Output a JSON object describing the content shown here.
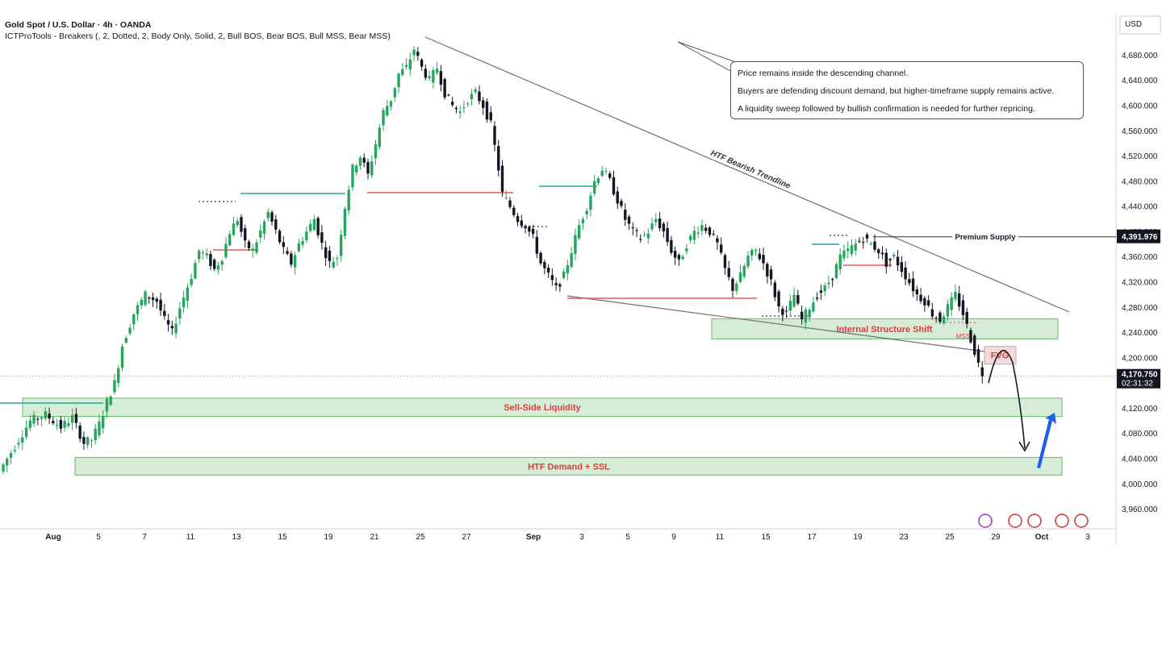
{
  "header": {
    "title": "Gold Spot / U.S. Dollar · 4h · OANDA",
    "indicator": "ICTProTools - Breakers (, 2, Dotted, 2, Body Only, Solid, 2, Bull BOS, Bear BOS, Bull MSS, Bear MSS)"
  },
  "currency": "USD",
  "note": {
    "lines": [
      "Price remains inside the descending channel.",
      "Buyers are defending discount demand, but higher-timeframe supply remains active.",
      "A liquidity sweep followed by bullish confirmation is needed for further repricing."
    ]
  },
  "chart_data": {
    "type": "candlestick",
    "symbol": "XAUUSD",
    "timeframe": "4h",
    "ylim": [
      3930,
      4710
    ],
    "y_ticks": [
      3960,
      4000,
      4040,
      4080,
      4120,
      4160,
      4200,
      4240,
      4280,
      4320,
      4360,
      4400,
      4440,
      4480,
      4520,
      4560,
      4600,
      4640,
      4680
    ],
    "y_tick_labels": [
      "3,960.000",
      "4,000.000",
      "4,040.000",
      "4,080.000",
      "4,120.000",
      "4,160.000",
      "4,200.000",
      "4,240.000",
      "4,280.000",
      "4,320.000",
      "4,360.000",
      "4,400.000",
      "4,440.000",
      "4,480.000",
      "4,520.000",
      "4,560.000",
      "4,600.000",
      "4,640.000",
      "4,680.000"
    ],
    "x_ticks": [
      "Aug",
      "5",
      "7",
      "11",
      "13",
      "15",
      "19",
      "21",
      "25",
      "27",
      "Sep",
      "3",
      "5",
      "9",
      "11",
      "15",
      "17",
      "19",
      "23",
      "25",
      "29",
      "Oct",
      "3"
    ],
    "price_path": [
      [
        0,
        4020
      ],
      [
        4,
        4060
      ],
      [
        8,
        4100
      ],
      [
        12,
        4110
      ],
      [
        16,
        4090
      ],
      [
        19,
        4105
      ],
      [
        22,
        4065
      ],
      [
        24,
        4070
      ],
      [
        26,
        4095
      ],
      [
        28,
        4130
      ],
      [
        30,
        4160
      ],
      [
        32,
        4220
      ],
      [
        35,
        4270
      ],
      [
        38,
        4300
      ],
      [
        41,
        4290
      ],
      [
        43,
        4260
      ],
      [
        45,
        4240
      ],
      [
        47,
        4280
      ],
      [
        50,
        4330
      ],
      [
        52,
        4370
      ],
      [
        54,
        4360
      ],
      [
        56,
        4340
      ],
      [
        58,
        4360
      ],
      [
        60,
        4400
      ],
      [
        62,
        4420
      ],
      [
        64,
        4380
      ],
      [
        66,
        4370
      ],
      [
        68,
        4400
      ],
      [
        70,
        4430
      ],
      [
        72,
        4400
      ],
      [
        74,
        4370
      ],
      [
        76,
        4350
      ],
      [
        78,
        4380
      ],
      [
        80,
        4400
      ],
      [
        82,
        4420
      ],
      [
        84,
        4380
      ],
      [
        86,
        4350
      ],
      [
        88,
        4360
      ],
      [
        90,
        4440
      ],
      [
        92,
        4500
      ],
      [
        94,
        4520
      ],
      [
        96,
        4490
      ],
      [
        98,
        4540
      ],
      [
        100,
        4590
      ],
      [
        102,
        4610
      ],
      [
        104,
        4650
      ],
      [
        106,
        4660
      ],
      [
        108,
        4690
      ],
      [
        110,
        4660
      ],
      [
        112,
        4640
      ],
      [
        114,
        4660
      ],
      [
        116,
        4620
      ],
      [
        118,
        4600
      ],
      [
        120,
        4590
      ],
      [
        122,
        4610
      ],
      [
        124,
        4620
      ],
      [
        126,
        4600
      ],
      [
        128,
        4570
      ],
      [
        130,
        4500
      ],
      [
        131,
        4460
      ],
      [
        133,
        4440
      ],
      [
        135,
        4420
      ],
      [
        137,
        4410
      ],
      [
        139,
        4390
      ],
      [
        141,
        4350
      ],
      [
        143,
        4330
      ],
      [
        145,
        4310
      ],
      [
        147,
        4330
      ],
      [
        149,
        4370
      ],
      [
        151,
        4410
      ],
      [
        153,
        4440
      ],
      [
        155,
        4480
      ],
      [
        157,
        4500
      ],
      [
        159,
        4480
      ],
      [
        161,
        4450
      ],
      [
        163,
        4420
      ],
      [
        165,
        4400
      ],
      [
        167,
        4390
      ],
      [
        169,
        4400
      ],
      [
        171,
        4420
      ],
      [
        173,
        4400
      ],
      [
        175,
        4370
      ],
      [
        177,
        4350
      ],
      [
        179,
        4380
      ],
      [
        181,
        4400
      ],
      [
        183,
        4410
      ],
      [
        185,
        4400
      ],
      [
        187,
        4380
      ],
      [
        189,
        4340
      ],
      [
        191,
        4310
      ],
      [
        193,
        4330
      ],
      [
        195,
        4360
      ],
      [
        197,
        4370
      ],
      [
        199,
        4350
      ],
      [
        201,
        4320
      ],
      [
        203,
        4280
      ],
      [
        205,
        4270
      ],
      [
        207,
        4300
      ],
      [
        209,
        4260
      ],
      [
        211,
        4280
      ],
      [
        213,
        4300
      ],
      [
        215,
        4310
      ],
      [
        217,
        4330
      ],
      [
        219,
        4360
      ],
      [
        221,
        4370
      ],
      [
        223,
        4380
      ],
      [
        225,
        4390
      ],
      [
        227,
        4380
      ],
      [
        229,
        4370
      ],
      [
        231,
        4350
      ],
      [
        233,
        4360
      ],
      [
        235,
        4340
      ],
      [
        237,
        4320
      ],
      [
        239,
        4300
      ],
      [
        241,
        4290
      ],
      [
        243,
        4270
      ],
      [
        245,
        4260
      ],
      [
        247,
        4280
      ],
      [
        249,
        4300
      ],
      [
        251,
        4270
      ],
      [
        253,
        4230
      ],
      [
        255,
        4190
      ],
      [
        256,
        4175
      ]
    ],
    "last_price_label": "4,170.750",
    "countdown": "02:31:32",
    "premium_price_label": "4,391.976",
    "zones": [
      {
        "label": "Internal Structure Shift",
        "low": 4230,
        "high": 4262
      },
      {
        "label": "Sell-Side Liquidity",
        "low": 4107,
        "high": 4136
      },
      {
        "label": "HTF Demand + SSL",
        "low": 4014,
        "high": 4042
      },
      {
        "label": "FVG",
        "low": 4190,
        "high": 4218
      }
    ],
    "levels": [
      {
        "label": "Premium Supply",
        "price": 4392
      },
      {
        "label": "MSS",
        "price": 4243
      }
    ],
    "annotations": [
      "HTF Bearish Trendline"
    ],
    "colors": {
      "up": "#26a65b",
      "down": "#131722",
      "zone_fill": "#c8e6c9",
      "zone_border": "#66bb6a",
      "bear_line": "#e05a5a",
      "bull_line": "#26a69a",
      "arrow": "#1e5ee8"
    }
  }
}
